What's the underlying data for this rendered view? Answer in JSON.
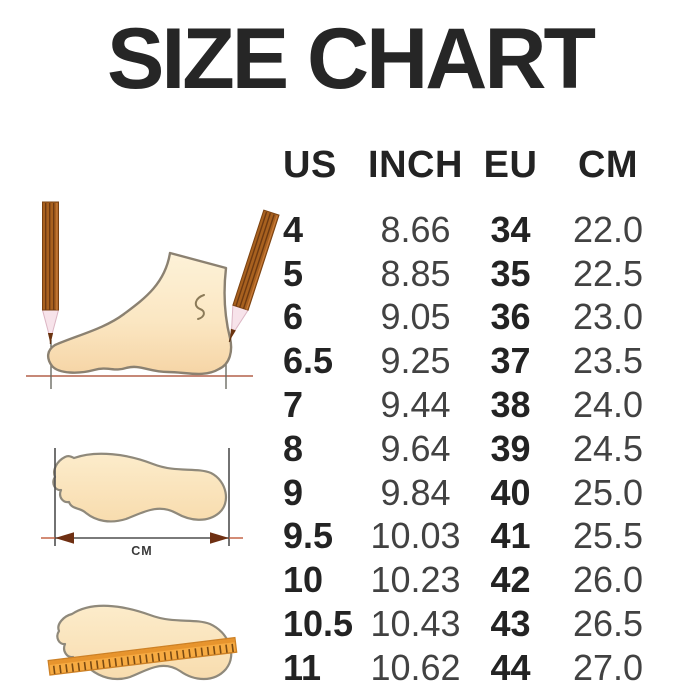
{
  "title": "SIZE CHART",
  "chart_data": {
    "type": "table",
    "title": "SIZE CHART",
    "columns": [
      "US",
      "INCH",
      "EU",
      "CM"
    ],
    "rows": [
      [
        "4",
        "8.66",
        "34",
        "22.0"
      ],
      [
        "5",
        "8.85",
        "35",
        "22.5"
      ],
      [
        "6",
        "9.05",
        "36",
        "23.0"
      ],
      [
        "6.5",
        "9.25",
        "37",
        "23.5"
      ],
      [
        "7",
        "9.44",
        "38",
        "24.0"
      ],
      [
        "8",
        "9.64",
        "39",
        "24.5"
      ],
      [
        "9",
        "9.84",
        "40",
        "25.0"
      ],
      [
        "9.5",
        "10.03",
        "41",
        "25.5"
      ],
      [
        "10",
        "10.23",
        "42",
        "26.0"
      ],
      [
        "10.5",
        "10.43",
        "43",
        "26.5"
      ],
      [
        "11",
        "10.62",
        "44",
        "27.0"
      ]
    ]
  },
  "illustrations": {
    "measure_label": "CM",
    "icons": [
      "pencil-icon",
      "foot-side-icon",
      "footprint-icon",
      "measure-arrow-icon",
      "ruler-icon"
    ],
    "colors": {
      "text": "#262626",
      "foot_fill": "#fbe9c6",
      "foot_outline": "#8b8171",
      "pencil_brown": "#a8611f",
      "pencil_stripe": "#6e3a12",
      "ruler_orange": "#f7ab42",
      "guide_line_red": "#b4604a",
      "arrow_head_brown": "#6e2f12"
    }
  }
}
